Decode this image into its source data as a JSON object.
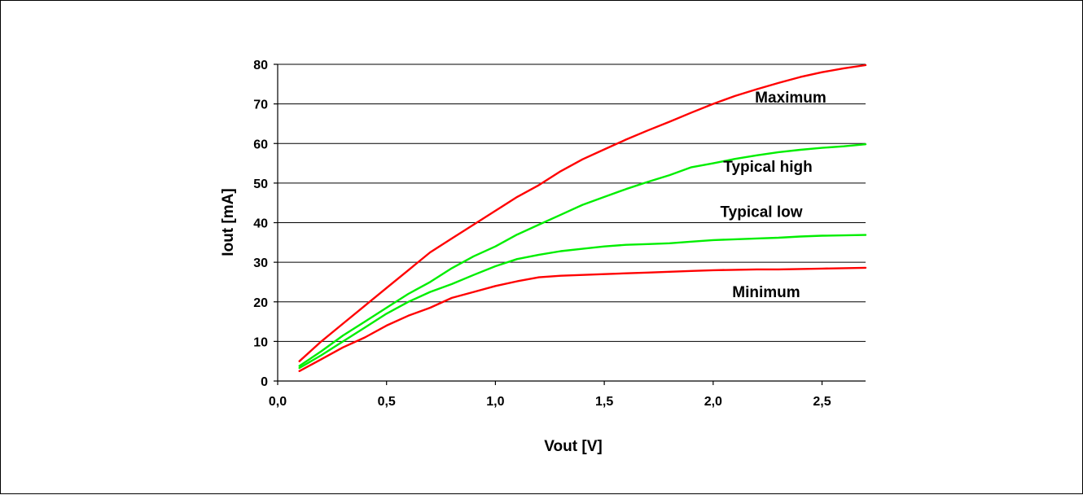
{
  "chart_data": {
    "type": "line",
    "title": "",
    "xlabel": "Vout [V]",
    "ylabel": "Iout [mA]",
    "xlim": [
      0.0,
      2.7
    ],
    "ylim": [
      0,
      80
    ],
    "x_ticks": [
      0.0,
      0.5,
      1.0,
      1.5,
      2.0,
      2.5
    ],
    "x_tick_labels": [
      "0,0",
      "0,5",
      "1,0",
      "1,5",
      "2,0",
      "2,5"
    ],
    "y_ticks": [
      0,
      10,
      20,
      30,
      40,
      50,
      60,
      70,
      80
    ],
    "y_tick_labels": [
      "0",
      "10",
      "20",
      "30",
      "40",
      "50",
      "60",
      "70",
      "80"
    ],
    "grid": "horizontal",
    "legend": "none",
    "series": [
      {
        "name": "Maximum",
        "color": "#ff0000",
        "x": [
          0.1,
          0.2,
          0.3,
          0.4,
          0.5,
          0.6,
          0.7,
          0.8,
          0.9,
          1.0,
          1.1,
          1.2,
          1.3,
          1.4,
          1.5,
          1.6,
          1.7,
          1.8,
          1.9,
          2.0,
          2.1,
          2.2,
          2.3,
          2.4,
          2.5,
          2.6,
          2.7
        ],
        "y": [
          5,
          10,
          14.5,
          19,
          23.5,
          28,
          32.5,
          36,
          39.5,
          43,
          46.5,
          49.5,
          53,
          56,
          58.5,
          61,
          63.3,
          65.5,
          67.8,
          70,
          72,
          73.7,
          75.3,
          76.8,
          78,
          79,
          79.8
        ]
      },
      {
        "name": "Typical high",
        "color": "#00ee00",
        "x": [
          0.1,
          0.2,
          0.3,
          0.4,
          0.5,
          0.6,
          0.7,
          0.8,
          0.9,
          1.0,
          1.1,
          1.2,
          1.3,
          1.4,
          1.5,
          1.6,
          1.7,
          1.8,
          1.9,
          2.0,
          2.1,
          2.2,
          2.3,
          2.4,
          2.5,
          2.6,
          2.7
        ],
        "y": [
          3.8,
          7.5,
          11.5,
          15,
          18.5,
          22,
          25,
          28.5,
          31.5,
          34,
          37,
          39.5,
          42,
          44.5,
          46.5,
          48.5,
          50.3,
          52,
          54,
          55,
          56.1,
          57,
          57.8,
          58.4,
          58.9,
          59.3,
          59.8
        ]
      },
      {
        "name": "Typical low",
        "color": "#00ee00",
        "x": [
          0.1,
          0.2,
          0.3,
          0.4,
          0.5,
          0.6,
          0.7,
          0.8,
          0.9,
          1.0,
          1.1,
          1.2,
          1.3,
          1.4,
          1.5,
          1.6,
          1.7,
          1.8,
          1.9,
          2.0,
          2.1,
          2.2,
          2.3,
          2.4,
          2.5,
          2.6,
          2.7
        ],
        "y": [
          3.3,
          6.5,
          10,
          13.5,
          17,
          20,
          22.5,
          24.5,
          26.8,
          29,
          30.8,
          31.9,
          32.8,
          33.4,
          34,
          34.4,
          34.6,
          34.8,
          35.2,
          35.6,
          35.8,
          36,
          36.2,
          36.5,
          36.7,
          36.8,
          36.9
        ]
      },
      {
        "name": "Minimum",
        "color": "#ff0000",
        "x": [
          0.1,
          0.2,
          0.3,
          0.4,
          0.5,
          0.6,
          0.7,
          0.8,
          0.9,
          1.0,
          1.1,
          1.2,
          1.3,
          1.4,
          1.5,
          1.6,
          1.7,
          1.8,
          1.9,
          2.0,
          2.1,
          2.2,
          2.3,
          2.4,
          2.5,
          2.6,
          2.7
        ],
        "y": [
          2.5,
          5.5,
          8.5,
          11,
          14,
          16.5,
          18.5,
          21,
          22.5,
          24,
          25.2,
          26.2,
          26.6,
          26.8,
          27,
          27.2,
          27.4,
          27.6,
          27.8,
          28,
          28.1,
          28.2,
          28.2,
          28.3,
          28.4,
          28.5,
          28.6
        ]
      }
    ]
  }
}
